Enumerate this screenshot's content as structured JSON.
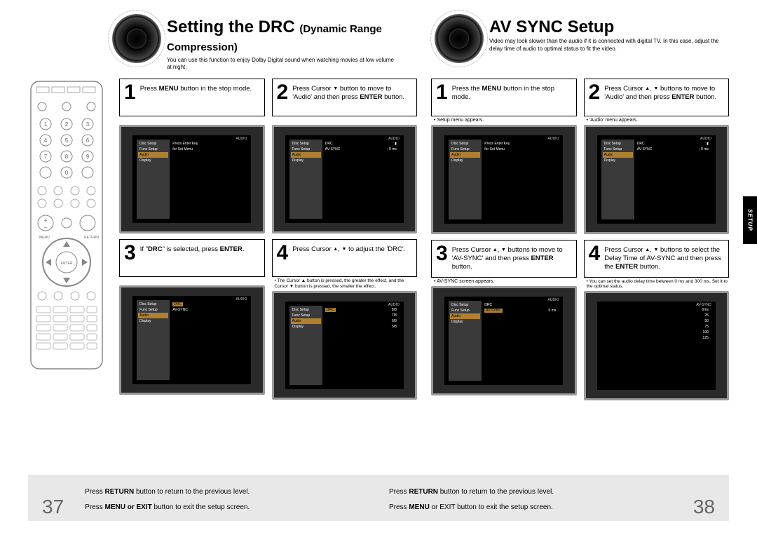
{
  "left": {
    "title_main": "Setting the DRC",
    "title_sub": "(Dynamic Range Compression)",
    "subtitle": "You can use this function to enjoy Dolby Digital sound when watching movies at low volume at night.",
    "steps": [
      {
        "num": "1",
        "html": "Press <b>MENU</b> button in the stop mode.",
        "note": "",
        "screen": "menu_audio"
      },
      {
        "num": "2",
        "html": "Press Cursor <span class='tri'>▼</span> button to move to 'Audio' and then press <b>ENTER</b> button.",
        "note": "",
        "screen": "audio_list"
      },
      {
        "num": "3",
        "html": "If \"<b>DRC</b>\" is selected, press <b>ENTER</b>.",
        "note": "",
        "screen": "drc_sel"
      },
      {
        "num": "4",
        "html": "Press Cursor <span class='tri'>▲</span>, <span class='tri'>▼</span> to adjust the 'DRC'.",
        "note": "• The Cursor ▲ button is pressed, the greater the effect, and the Cursor ▼ button is pressed, the smaller the effect.",
        "screen": "drc_adj"
      }
    ]
  },
  "right": {
    "title_main": "AV SYNC Setup",
    "subtitle": "Video may look slower than the audio if it is connected with digital TV. In this case, adjust the delay time of audio to optimal status to fit the video.",
    "steps": [
      {
        "num": "1",
        "html": "Press the <b>MENU</b> button in the stop mode.",
        "note": "• Setup menu appears.",
        "screen": "menu_audio"
      },
      {
        "num": "2",
        "html": "Press Cursor <span class='tri'>▲</span>, <span class='tri'>▼</span> buttons to move to 'Audio' and then press <b>ENTER</b> button.",
        "note": "• 'Audio' menu appears.",
        "screen": "audio_list2"
      },
      {
        "num": "3",
        "html": "Press Cursor <span class='tri'>▲</span>, <span class='tri'>▼</span> buttons to move to 'AV-SYNC' and then press <b>ENTER</b> button.",
        "note": "• AV-SYNC screen appears.",
        "screen": "avsync_sel"
      },
      {
        "num": "4",
        "html": "Press Cursor <span class='tri'>▲</span>, <span class='tri'>▼</span> buttons to select the Delay Time of AV-SYNC and then press the <b>ENTER</b> button.",
        "note": "• You can set the audio delay time between 0 ms and 300 ms. Set it to the optimal status.",
        "screen": "avsync_adj"
      }
    ]
  },
  "footer": {
    "line1": "Press <b>RETURN</b> button to return to the previous level.",
    "line2_left": "Press <b>MENU or EXIT</b> button to exit the setup screen.",
    "line2_right": "Press <b>MENU</b> or EXIT button to exit the setup screen.",
    "page_left": "37",
    "page_right": "38"
  },
  "tab": "SETUP",
  "screen_label": "AUDIO",
  "screens": {
    "menu_audio": {
      "side": [
        "Disc Setup",
        "Func Setup",
        "Audio",
        "Display"
      ],
      "sel": 2,
      "rows": [
        [
          "Press Enter Key",
          ""
        ],
        [
          "for Set Menu",
          ""
        ]
      ]
    },
    "audio_list": {
      "side": [
        "Disc Setup",
        "Func Setup",
        "Audio",
        "Display"
      ],
      "sel": 2,
      "rows": [
        [
          "DRC",
          ": ▮"
        ],
        [
          "AV-SYNC",
          ": 0 ms"
        ]
      ]
    },
    "drc_sel": {
      "side": [
        "Disc Setup",
        "Func Setup",
        "Audio",
        "Display"
      ],
      "sel": 2,
      "rows": [
        [
          "DRC",
          ""
        ],
        [
          "AV-SYNC",
          ""
        ]
      ],
      "hl": 0
    },
    "drc_adj": {
      "side": [
        "Disc Setup",
        "Func Setup",
        "Audio",
        "Display"
      ],
      "sel": 2,
      "rows": [
        [
          "DRC",
          ": 8/8"
        ],
        [
          "",
          "7/8"
        ],
        [
          "",
          "6/8"
        ],
        [
          "",
          "5/8"
        ]
      ],
      "hl": 0
    },
    "audio_list2": {
      "side": [
        "Disc Setup",
        "Func Setup",
        "Audio",
        "Display"
      ],
      "sel": 2,
      "rows": [
        [
          "DRC",
          ": ▮"
        ],
        [
          "AV-SYNC",
          ": 0 ms"
        ]
      ]
    },
    "avsync_sel": {
      "side": [
        "Disc Setup",
        "Func Setup",
        "Audio",
        "Display"
      ],
      "sel": 2,
      "rows": [
        [
          "DRC",
          ""
        ],
        [
          "AV-SYNC",
          "0 ms"
        ]
      ],
      "hl": 1
    },
    "avsync_adj": {
      "side": [],
      "title": "AV-SYNC",
      "rows": [
        [
          "",
          "0ms"
        ],
        [
          "",
          "25"
        ],
        [
          "",
          "50"
        ],
        [
          "",
          "75"
        ],
        [
          "",
          "100"
        ],
        [
          "",
          "125"
        ]
      ]
    }
  }
}
